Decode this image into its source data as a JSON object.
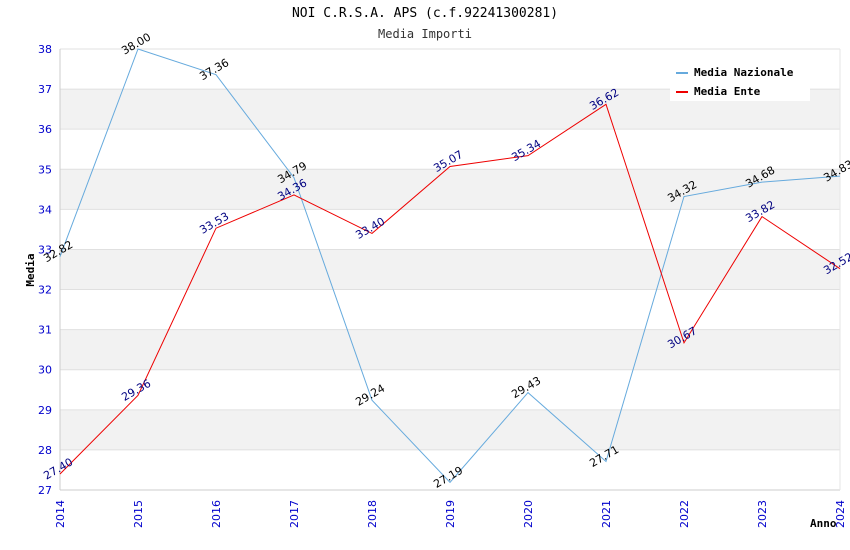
{
  "chart_data": {
    "type": "line",
    "title": "NOI C.R.S.A. APS (c.f.92241300281)",
    "subtitle": "Media Importi",
    "xlabel": "Anno",
    "ylabel": "Media",
    "ylim": [
      27,
      38
    ],
    "yticks": [
      "27",
      "28",
      "29",
      "30",
      "31",
      "32",
      "33",
      "34",
      "35",
      "36",
      "37",
      "38"
    ],
    "categories": [
      "2014",
      "2015",
      "2016",
      "2017",
      "2018",
      "2019",
      "2020",
      "2021",
      "2022",
      "2023",
      "2024"
    ],
    "grid": true,
    "legend_position": "top-right",
    "series": [
      {
        "name": "Media Nazionale",
        "color": "#66aadd",
        "label_color": "#000000",
        "values": [
          32.82,
          38.0,
          37.36,
          34.79,
          29.24,
          27.19,
          29.43,
          27.71,
          34.32,
          34.68,
          34.83
        ],
        "labels": [
          "32.82",
          "38.00",
          "37.36",
          "34.79",
          "29.24",
          "27.19",
          "29.43",
          "27.71",
          "34.32",
          "34.68",
          "34.83"
        ]
      },
      {
        "name": "Media Ente",
        "color": "#ee0000",
        "label_color": "#000080",
        "values": [
          27.4,
          29.36,
          33.53,
          34.36,
          33.4,
          35.07,
          35.34,
          36.62,
          30.67,
          33.82,
          32.52
        ],
        "labels": [
          "27.40",
          "29.36",
          "33.53",
          "34.36",
          "33.40",
          "35.07",
          "35.34",
          "36.62",
          "30.67",
          "33.82",
          "32.52"
        ]
      }
    ],
    "colors": {
      "tick_x": "#0000cc",
      "tick_y": "#0000cc",
      "band": "#f2f2f2",
      "axis": "#cccccc"
    }
  }
}
